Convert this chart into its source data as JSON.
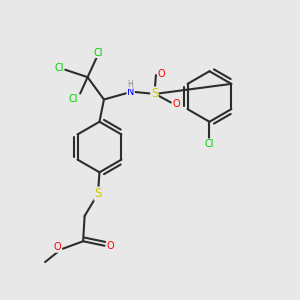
{
  "bg_color": "#e8e8e8",
  "bond_color": "#2d2d2d",
  "bond_width": 1.5,
  "atom_colors": {
    "Cl": "#00cc00",
    "N": "#0000ff",
    "H": "#888888",
    "S": "#cccc00",
    "O": "#ff0000",
    "C": "#2d2d2d"
  },
  "font_size": 7.0,
  "fig_size": [
    3.0,
    3.0
  ],
  "dpi": 100
}
